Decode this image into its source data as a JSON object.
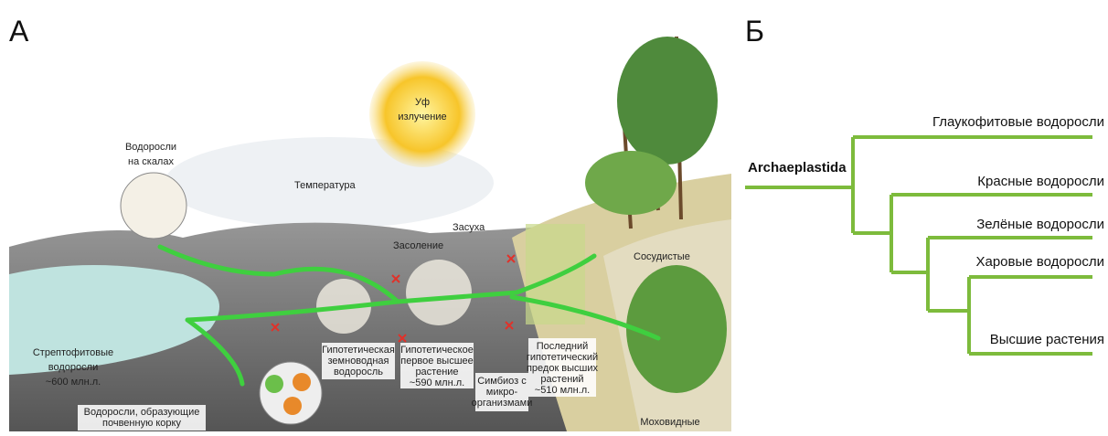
{
  "panel_a": {
    "label": "А",
    "uv": [
      "Уф",
      "излучение"
    ],
    "rock_algae": [
      "Водоросли",
      "на скалах"
    ],
    "temperature": "Температура",
    "drought": "Засуха",
    "salinity": "Засоление",
    "vascular": "Сосудистые",
    "streptophyte": [
      "Стрептофитовые",
      "водоросли",
      "~600 млн.л."
    ],
    "amphibious": [
      "Гипотетическая",
      "земноводная",
      "водоросль"
    ],
    "first_plant": [
      "Гипотетическое",
      "первое высшее",
      "растение",
      "~590 млн.л."
    ],
    "symbiosis": [
      "Симбиоз с",
      "микро-",
      "организмами"
    ],
    "last_ancestor": [
      "Последний",
      "гипотетический",
      "предок высших",
      "растений",
      "~510 млн.л."
    ],
    "soil_crust": [
      "Водоросли, образующие",
      "почвенную корку"
    ],
    "mosses": "Моховидные"
  },
  "panel_b": {
    "label": "Б",
    "root": "Archaeplastida",
    "leaves": [
      "Глаукофитовые водоросли",
      "Красные водоросли",
      "Зелёные водоросли",
      "Харовые водоросли",
      "Высшие растения"
    ]
  }
}
